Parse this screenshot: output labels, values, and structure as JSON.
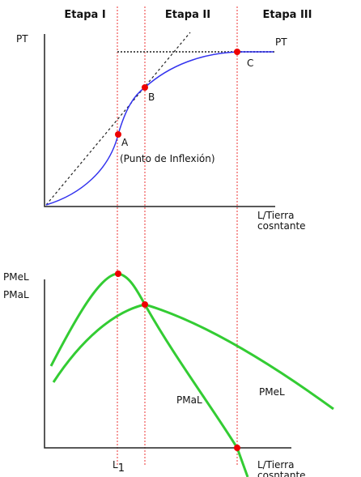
{
  "stages": [
    "Etapa I",
    "Etapa II",
    "Etapa III"
  ],
  "top_graph": {
    "y_label": "PT",
    "curve_label": "PT",
    "points": [
      "A",
      "B",
      "C"
    ],
    "inflection_note": "(Punto de Inflexión)",
    "x_label": [
      "L/Tierra",
      "cosntante"
    ]
  },
  "bottom_graph": {
    "y_labels": [
      "PMeL",
      "PMaL"
    ],
    "curve_labels": {
      "pmal": "PMaL",
      "pmel": "PMeL"
    },
    "l1": {
      "base": "L",
      "sub": "1"
    },
    "x_label": [
      "L/Tierra",
      "cosntante"
    ]
  }
}
